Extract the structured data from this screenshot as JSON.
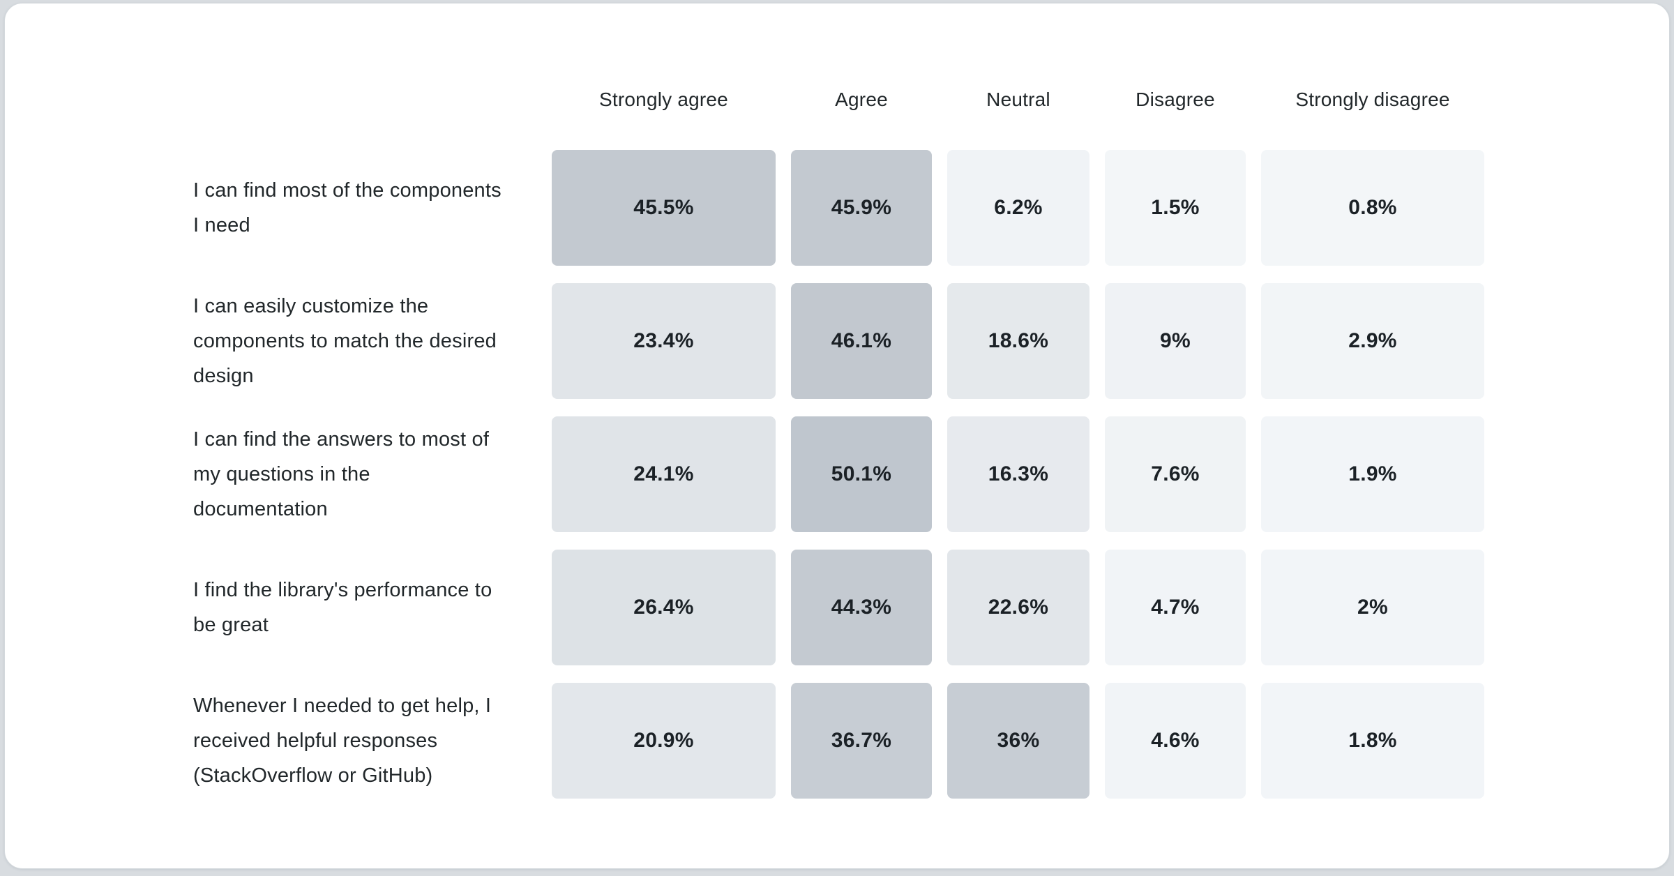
{
  "page": {
    "background_color": "#d8dce0",
    "card_background": "#ffffff",
    "card_border_color": "#d3d8dc",
    "header_text_color": "#21272a",
    "label_text_color": "#21272a",
    "value_text_color": "#1b2126"
  },
  "chart_data": {
    "type": "heatmap",
    "title": "",
    "xlabel": "",
    "ylabel": "",
    "legend": false,
    "grid": false,
    "columns": [
      "Strongly agree",
      "Agree",
      "Neutral",
      "Disagree",
      "Strongly disagree"
    ],
    "rows": [
      {
        "label": "I can find most of the components I need",
        "display_values": [
          "45.5%",
          "45.9%",
          "6.2%",
          "1.5%",
          "0.8%"
        ],
        "values": [
          45.5,
          45.9,
          6.2,
          1.5,
          0.8
        ],
        "cell_colors": [
          "#c3c9d0",
          "#c3c9d0",
          "#f0f3f6",
          "#f3f6f8",
          "#f3f6f8"
        ]
      },
      {
        "label": "I can easily customize the components to match the desired design",
        "display_values": [
          "23.4%",
          "46.1%",
          "18.6%",
          "9%",
          "2.9%"
        ],
        "values": [
          23.4,
          46.1,
          18.6,
          9,
          2.9
        ],
        "cell_colors": [
          "#e1e5e9",
          "#c2c8cf",
          "#e5e9ec",
          "#eff2f5",
          "#f2f5f7"
        ]
      },
      {
        "label": "I can find the answers to most of my questions in the documentation",
        "display_values": [
          "24.1%",
          "50.1%",
          "16.3%",
          "7.6%",
          "1.9%"
        ],
        "values": [
          24.1,
          50.1,
          16.3,
          7.6,
          1.9
        ],
        "cell_colors": [
          "#e0e4e8",
          "#bfc6ce",
          "#e7eaee",
          "#f0f3f5",
          "#f2f5f8"
        ]
      },
      {
        "label": "I find the library's performance to be great",
        "display_values": [
          "26.4%",
          "44.3%",
          "22.6%",
          "4.7%",
          "2%"
        ],
        "values": [
          26.4,
          44.3,
          22.6,
          4.7,
          2
        ],
        "cell_colors": [
          "#dde2e6",
          "#c4cad1",
          "#e2e6ea",
          "#f1f4f7",
          "#f2f5f8"
        ]
      },
      {
        "label": "Whenever I needed to get help, I received helpful responses (StackOverflow or GitHub)",
        "display_values": [
          "20.9%",
          "36.7%",
          "36%",
          "4.6%",
          "1.8%"
        ],
        "values": [
          20.9,
          36.7,
          36,
          4.6,
          1.8
        ],
        "cell_colors": [
          "#e3e7eb",
          "#c7cdd4",
          "#c7cdd4",
          "#f1f4f7",
          "#f2f5f8"
        ]
      }
    ]
  }
}
